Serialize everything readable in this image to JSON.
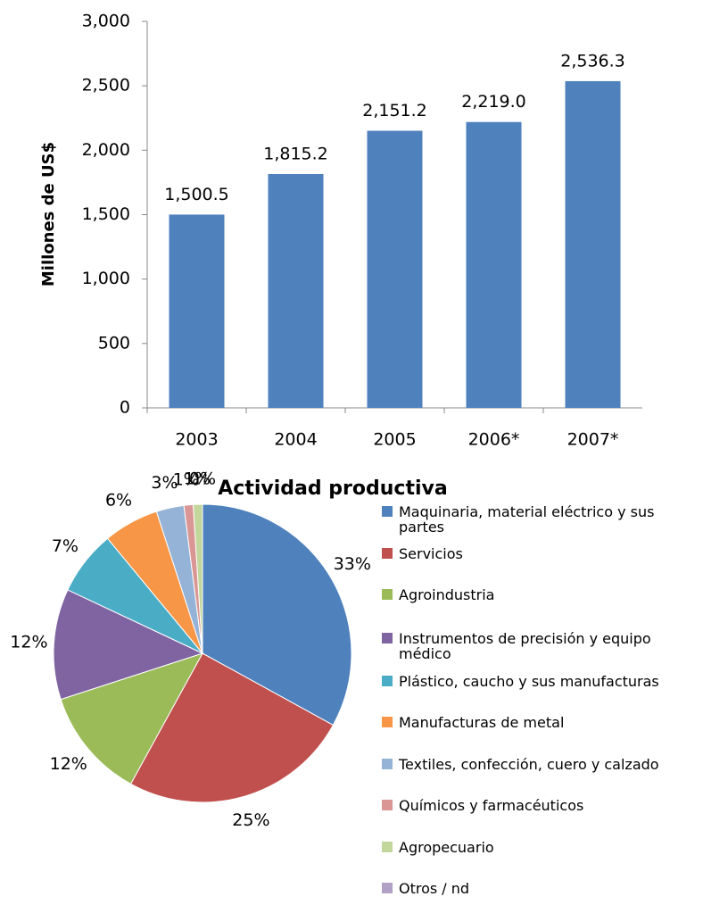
{
  "chart_data": [
    {
      "type": "bar",
      "y_label": "Millones de US$",
      "categories": [
        "2003",
        "2004",
        "2005",
        "2006*",
        "2007*"
      ],
      "values": [
        1500.5,
        1815.2,
        2151.2,
        2219.0,
        2536.3
      ],
      "value_labels": [
        "1,500.5",
        "1,815.2",
        "2,151.2",
        "2,219.0",
        "2,536.3"
      ],
      "color": "#4f81bd",
      "ylim": [
        0,
        3000
      ],
      "yticks": [
        0,
        500,
        {
          "value": 1000,
          "label": "1,000"
        },
        {
          "value": 1500,
          "label": "1,500"
        },
        {
          "value": 2000,
          "label": "2,000"
        },
        {
          "value": 2500,
          "label": "2,500"
        },
        {
          "value": 3000,
          "label": "3,000"
        }
      ]
    },
    {
      "type": "pie",
      "title": "Actividad productiva",
      "categories": [
        "Maquinaria, material eléctrico y sus partes",
        "Servicios",
        "Agroindustria",
        "Instrumentos de precisión y equipo médico",
        "Plástico, caucho y sus manufacturas",
        "Manufacturas de metal",
        "Textiles, confección, cuero y calzado",
        "Químicos y farmacéuticos",
        "Agropecuario",
        "Otros / nd"
      ],
      "values": [
        33,
        25,
        12,
        12,
        7,
        6,
        3,
        1,
        1,
        0
      ],
      "value_labels": [
        "33%",
        "25%",
        "12%",
        "12%",
        "7%",
        "6%",
        "3%",
        "1%",
        "1%",
        "0%"
      ],
      "colors": [
        "#4f81bd",
        "#c0504d",
        "#9bbb59",
        "#8064a2",
        "#4bacc6",
        "#f79646",
        "#95b3d7",
        "#d99694",
        "#c3d69b",
        "#b2a1c7"
      ],
      "legend": "right"
    }
  ]
}
